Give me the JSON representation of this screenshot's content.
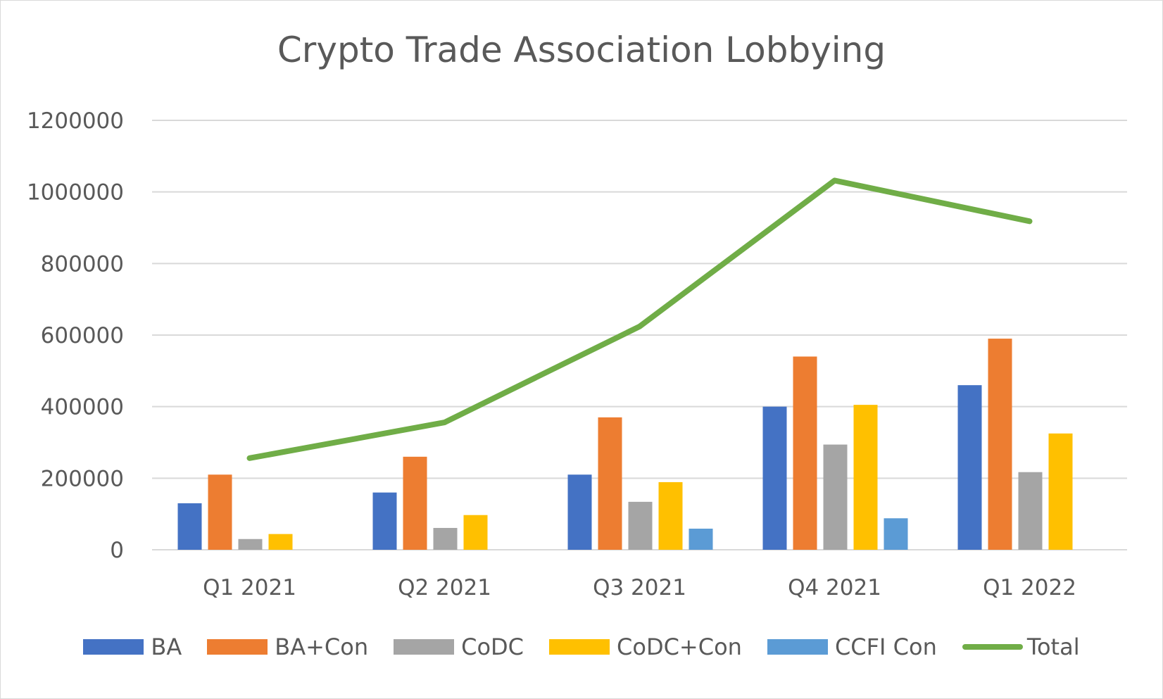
{
  "chart_data": {
    "type": "bar",
    "title": "Crypto Trade Association Lobbying",
    "xlabel": "",
    "ylabel": "",
    "ylim": [
      0,
      1200000
    ],
    "yticks": [
      "0",
      "200000",
      "400000",
      "600000",
      "800000",
      "1000000",
      "1200000"
    ],
    "ytick_values": [
      0,
      200000,
      400000,
      600000,
      800000,
      1000000,
      1200000
    ],
    "grid": true,
    "legend_position": "bottom",
    "categories": [
      "Q1 2021",
      "Q2 2021",
      "Q3 2021",
      "Q4 2021",
      "Q1 2022"
    ],
    "series": [
      {
        "name": "BA",
        "type": "bar",
        "color": "#4472C4",
        "values": [
          130000,
          160000,
          210000,
          400000,
          460000
        ]
      },
      {
        "name": "BA+Con",
        "type": "bar",
        "color": "#ED7D31",
        "values": [
          210000,
          260000,
          370000,
          540000,
          590000
        ]
      },
      {
        "name": "CoDC",
        "type": "bar",
        "color": "#A5A5A5",
        "values": [
          30000,
          61000,
          134000,
          294000,
          217000
        ]
      },
      {
        "name": "CoDC+Con",
        "type": "bar",
        "color": "#FFC000",
        "values": [
          44000,
          97000,
          189000,
          405000,
          325000
        ]
      },
      {
        "name": "CCFI Con",
        "type": "bar",
        "color": "#5B9BD5",
        "values": [
          0,
          0,
          59000,
          88000,
          0
        ]
      },
      {
        "name": "Total",
        "type": "line",
        "color": "#70AD47",
        "values": [
          256000,
          356000,
          624000,
          1032000,
          918000
        ]
      }
    ]
  }
}
